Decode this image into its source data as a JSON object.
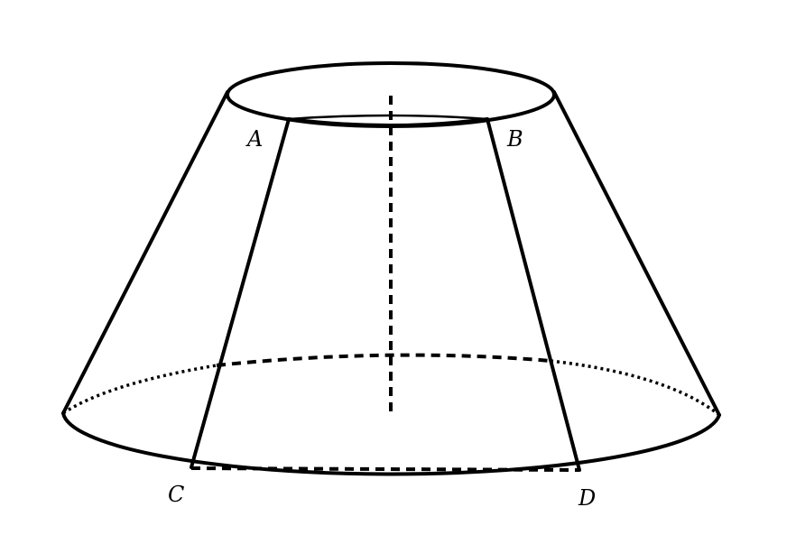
{
  "diagram": {
    "points": {
      "A": "A",
      "B": "B",
      "C": "C",
      "D": "D"
    },
    "stroke_color": "#000000",
    "background_color": "#ffffff"
  }
}
